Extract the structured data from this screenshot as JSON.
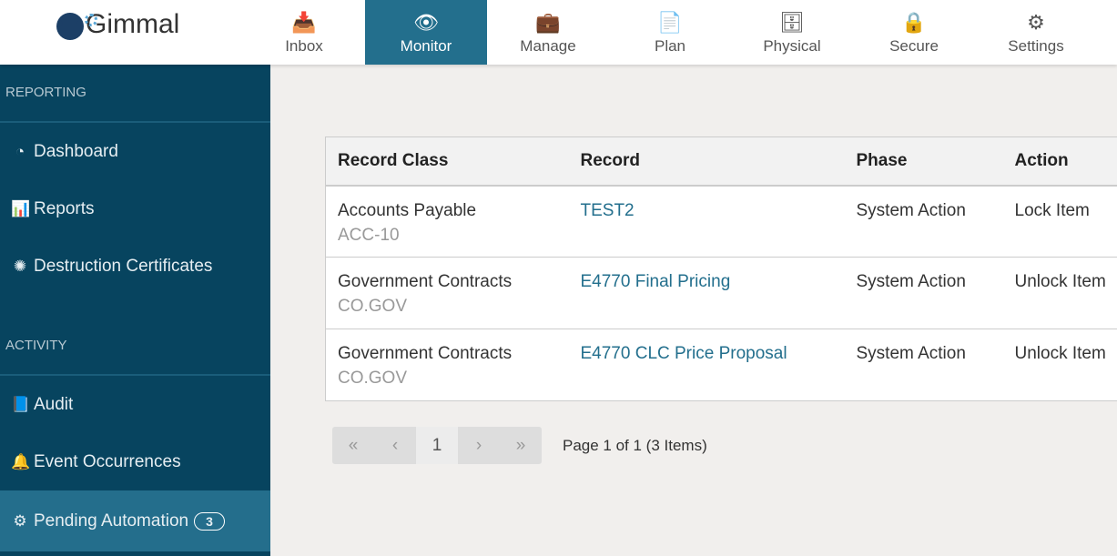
{
  "logo": "Gimmal",
  "nav": [
    {
      "label": "Inbox",
      "icon": "inbox-icon",
      "glyph": "📥"
    },
    {
      "label": "Monitor",
      "icon": "eye-icon",
      "glyph": "👁",
      "active": true
    },
    {
      "label": "Manage",
      "icon": "briefcase-icon",
      "glyph": "💼"
    },
    {
      "label": "Plan",
      "icon": "document-icon",
      "glyph": "📄"
    },
    {
      "label": "Physical",
      "icon": "archive-icon",
      "glyph": "🗄"
    },
    {
      "label": "Secure",
      "icon": "lock-icon",
      "glyph": "🔒"
    },
    {
      "label": "Settings",
      "icon": "gears-icon",
      "glyph": "⚙"
    }
  ],
  "sidebar": {
    "reporting": "REPORTING",
    "activity": "ACTIVITY",
    "items": [
      {
        "label": "Dashboard",
        "glyph": "◔"
      },
      {
        "label": "Reports",
        "glyph": "📊"
      },
      {
        "label": "Destruction Certificates",
        "glyph": "✺"
      },
      {
        "label": "Audit",
        "glyph": "📘"
      },
      {
        "label": "Event Occurrences",
        "glyph": "🔔"
      },
      {
        "label": "Pending Automation",
        "glyph": "⚙",
        "badge": "3"
      }
    ]
  },
  "table": {
    "headers": [
      "Record Class",
      "Record",
      "Phase",
      "Action"
    ],
    "rows": [
      {
        "class": "Accounts Payable",
        "code": "ACC-10",
        "record": "TEST2",
        "phase": "System Action",
        "action": "Lock Item"
      },
      {
        "class": "Government Contracts",
        "code": "CO.GOV",
        "record": "E4770 Final Pricing",
        "phase": "System Action",
        "action": "Unlock Item"
      },
      {
        "class": "Government Contracts",
        "code": "CO.GOV",
        "record": "E4770 CLC Price Proposal",
        "phase": "System Action",
        "action": "Unlock Item"
      }
    ]
  },
  "pager": {
    "first": "«",
    "prev": "‹",
    "page": "1",
    "next": "›",
    "last": "»",
    "info": "Page 1 of 1 (3 Items)"
  }
}
